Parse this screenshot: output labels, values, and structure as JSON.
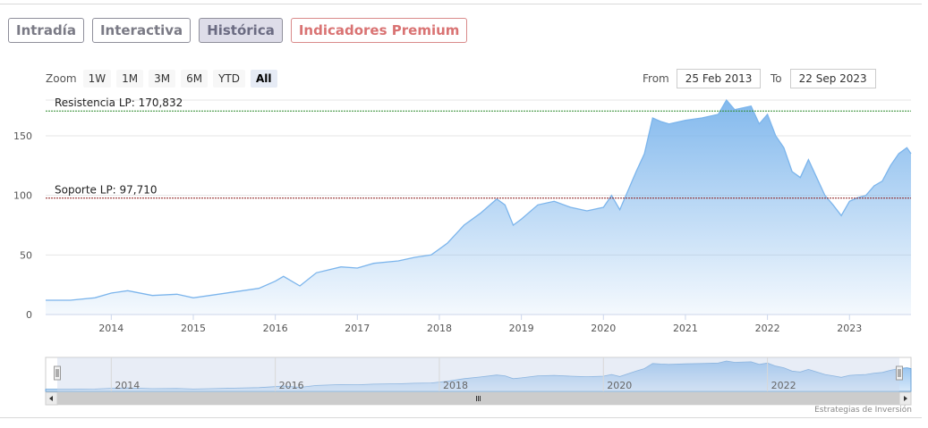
{
  "tabs": [
    {
      "label": "Intradía",
      "state": "normal"
    },
    {
      "label": "Interactiva",
      "state": "normal"
    },
    {
      "label": "Histórica",
      "state": "active"
    },
    {
      "label": "Indicadores Premium",
      "state": "premium"
    }
  ],
  "zoom": {
    "label": "Zoom",
    "buttons": [
      "1W",
      "1M",
      "3M",
      "6M",
      "YTD",
      "All"
    ],
    "active": "All"
  },
  "range": {
    "from_label": "From",
    "from_value": "25 Feb 2013",
    "to_label": "To",
    "to_value": "22 Sep 2023"
  },
  "credit": "Estrategias de Inversión",
  "colors": {
    "line": "#7cb5ec",
    "resistance": "#2e8b2e",
    "support": "#8b1a1a",
    "navigator_mask": "#ccd6eb"
  },
  "chart_data": {
    "type": "area",
    "ylim": [
      0,
      180
    ],
    "y_ticks": [
      0,
      50,
      100,
      150
    ],
    "x_range": [
      2013.2,
      2023.75
    ],
    "x_ticks": [
      "2014",
      "2015",
      "2016",
      "2017",
      "2018",
      "2019",
      "2020",
      "2021",
      "2022",
      "2023"
    ],
    "navigator_ticks": [
      "2014",
      "2016",
      "2018",
      "2020",
      "2022"
    ],
    "resistance": {
      "label": "Resistencia LP: 170,832",
      "value": 170.832
    },
    "support": {
      "label": "Soporte LP: 97,710",
      "value": 97.71
    },
    "series": [
      {
        "x": [
          2013.2,
          2013.5,
          2013.8,
          2014.0,
          2014.2,
          2014.5,
          2014.8,
          2015.0,
          2015.2,
          2015.5,
          2015.8,
          2016.0,
          2016.1,
          2016.3,
          2016.5,
          2016.8,
          2017.0,
          2017.2,
          2017.5,
          2017.7,
          2017.9,
          2018.0,
          2018.1,
          2018.3,
          2018.5,
          2018.7,
          2018.8,
          2018.9,
          2019.0,
          2019.2,
          2019.4,
          2019.6,
          2019.8,
          2020.0,
          2020.1,
          2020.2,
          2020.4,
          2020.5,
          2020.6,
          2020.7,
          2020.8,
          2021.0,
          2021.2,
          2021.4,
          2021.5,
          2021.6,
          2021.8,
          2021.9,
          2022.0,
          2022.1,
          2022.2,
          2022.3,
          2022.4,
          2022.5,
          2022.6,
          2022.7,
          2022.8,
          2022.9,
          2023.0,
          2023.1,
          2023.2,
          2023.3,
          2023.4,
          2023.5,
          2023.6,
          2023.7,
          2023.75
        ],
        "values": [
          12,
          12,
          14,
          18,
          20,
          16,
          17,
          14,
          16,
          19,
          22,
          28,
          32,
          24,
          35,
          40,
          39,
          43,
          45,
          48,
          50,
          55,
          60,
          75,
          85,
          97,
          92,
          75,
          80,
          92,
          95,
          90,
          87,
          90,
          100,
          88,
          120,
          135,
          165,
          162,
          160,
          163,
          165,
          168,
          180,
          172,
          175,
          160,
          168,
          150,
          140,
          120,
          115,
          130,
          115,
          100,
          92,
          83,
          95,
          98,
          100,
          108,
          112,
          125,
          135,
          140,
          135
        ]
      }
    ]
  }
}
